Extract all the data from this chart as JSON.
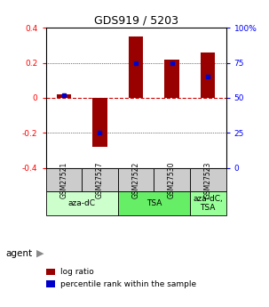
{
  "title": "GDS919 / 5203",
  "samples": [
    "GSM27521",
    "GSM27527",
    "GSM27522",
    "GSM27530",
    "GSM27523"
  ],
  "log_ratios": [
    0.02,
    -0.28,
    0.35,
    0.22,
    0.26
  ],
  "percentile_ranks": [
    52,
    25,
    75,
    75,
    65
  ],
  "ylim": [
    -0.4,
    0.4
  ],
  "yticks_left": [
    -0.4,
    -0.2,
    0.0,
    0.2,
    0.4
  ],
  "ytick_labels_left": [
    "-0.4",
    "-0.2",
    "0",
    "0.2",
    "0.4"
  ],
  "ytick_labels_right": [
    "0",
    "25",
    "50",
    "75",
    "100%"
  ],
  "bar_color": "#990000",
  "percentile_color": "#0000cc",
  "grid_color": "#000000",
  "dashed_zero_color": "#cc0000",
  "groups": [
    {
      "label": "aza-dC",
      "indices": [
        0,
        1
      ],
      "color": "#ccffcc"
    },
    {
      "label": "TSA",
      "indices": [
        2,
        3
      ],
      "color": "#66ee66"
    },
    {
      "label": "aza-dC,\nTSA",
      "indices": [
        4
      ],
      "color": "#99ff99"
    }
  ],
  "sample_box_color": "#cccccc",
  "agent_label": "agent",
  "legend_items": [
    {
      "label": "log ratio",
      "color": "#990000"
    },
    {
      "label": "percentile rank within the sample",
      "color": "#0000cc"
    }
  ],
  "bar_width": 0.4
}
